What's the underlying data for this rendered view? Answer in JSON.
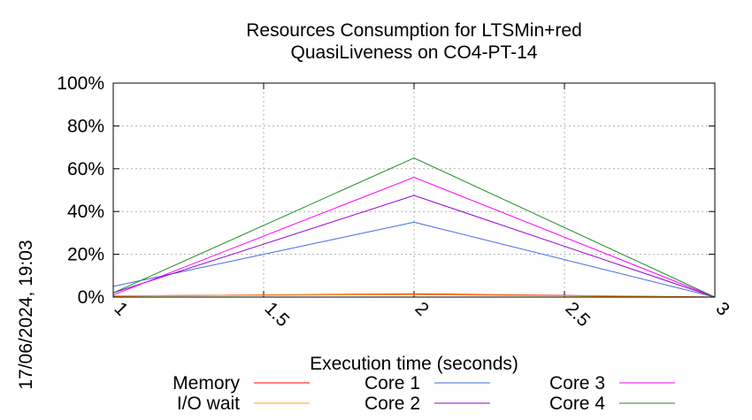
{
  "chart_data": {
    "type": "line",
    "title": "Resources Consumption for LTSMin+red",
    "subtitle": "QuasiLiveness on CO4-PT-14",
    "xlabel": "Execution time (seconds)",
    "ylabel": "",
    "side_label": "17/06/2024, 19:03",
    "xlim": [
      1,
      3
    ],
    "ylim": [
      0,
      100
    ],
    "x_ticks": [
      "1",
      "1.5",
      "2",
      "2.5",
      "3"
    ],
    "y_ticks": [
      "0%",
      "20%",
      "40%",
      "60%",
      "80%",
      "100%"
    ],
    "grid": true,
    "legend_position": "bottom",
    "x": [
      1,
      2,
      3
    ],
    "series": [
      {
        "name": "Memory",
        "color": "#ff0000",
        "values": [
          0.5,
          1.5,
          0
        ]
      },
      {
        "name": "I/O wait",
        "color": "#ffa500",
        "values": [
          0.5,
          1.2,
          0
        ]
      },
      {
        "name": "Core 1",
        "color": "#4169e1",
        "values": [
          5,
          35,
          0
        ]
      },
      {
        "name": "Core 2",
        "color": "#9400d3",
        "values": [
          2,
          47.5,
          0
        ]
      },
      {
        "name": "Core 3",
        "color": "#ff00ff",
        "values": [
          1,
          56,
          0
        ]
      },
      {
        "name": "Core 4",
        "color": "#228b22",
        "values": [
          2,
          65,
          0
        ]
      }
    ]
  }
}
